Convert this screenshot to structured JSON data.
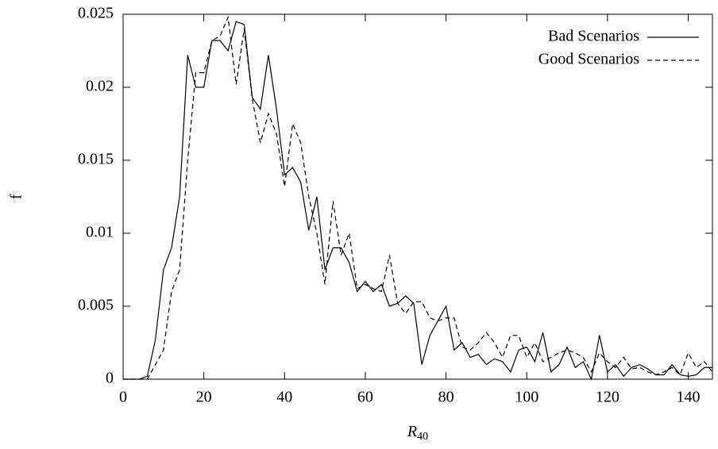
{
  "chart_data": {
    "type": "line",
    "y_label": "f",
    "x_label": "R",
    "x_label_sub": "40",
    "x": [
      0,
      2,
      4,
      6,
      8,
      10,
      12,
      14,
      16,
      18,
      20,
      22,
      24,
      26,
      28,
      30,
      32,
      34,
      36,
      38,
      40,
      42,
      44,
      46,
      48,
      50,
      52,
      54,
      56,
      58,
      60,
      62,
      64,
      66,
      68,
      70,
      72,
      74,
      76,
      78,
      80,
      82,
      84,
      86,
      88,
      90,
      92,
      94,
      96,
      98,
      100,
      102,
      104,
      106,
      108,
      110,
      112,
      114,
      116,
      118,
      120,
      122,
      124,
      126,
      128,
      130,
      132,
      134,
      136,
      138,
      140,
      142,
      144,
      146
    ],
    "series": [
      {
        "name": "Bad Scenarios",
        "color": "#000000",
        "dash": "none",
        "values": [
          0,
          0,
          0,
          0.0002,
          0.0027,
          0.0075,
          0.009,
          0.0125,
          0.0222,
          0.02,
          0.02,
          0.0232,
          0.0232,
          0.0225,
          0.0245,
          0.0243,
          0.0193,
          0.0185,
          0.0222,
          0.0185,
          0.014,
          0.0145,
          0.0135,
          0.0102,
          0.0125,
          0.0075,
          0.009,
          0.009,
          0.008,
          0.006,
          0.0067,
          0.006,
          0.0065,
          0.005,
          0.0052,
          0.0057,
          0.0052,
          0.001,
          0.003,
          0.004,
          0.005,
          0.002,
          0.0025,
          0.0015,
          0.0017,
          0.001,
          0.0014,
          0.0012,
          0.0005,
          0.002,
          0.0022,
          0.0012,
          0.0032,
          0.0005,
          0.001,
          0.0022,
          0.0008,
          0.0012,
          0,
          0.003,
          0.0005,
          0.001,
          0.0002,
          0.0008,
          0.001,
          0.0007,
          0.0003,
          0.0003,
          0.001,
          0.0003,
          0.0002,
          0.0003,
          0.0008,
          0.0008
        ]
      },
      {
        "name": "Good Scenarios",
        "color": "#000000",
        "dash": "6 4",
        "values": [
          0,
          0,
          0,
          0,
          0.001,
          0.002,
          0.006,
          0.0075,
          0.015,
          0.021,
          0.021,
          0.0232,
          0.0235,
          0.0248,
          0.0202,
          0.024,
          0.0192,
          0.0162,
          0.0182,
          0.0168,
          0.0132,
          0.0175,
          0.0162,
          0.0125,
          0.01,
          0.0065,
          0.0122,
          0.0085,
          0.01,
          0.0062,
          0.0065,
          0.0062,
          0.006,
          0.0085,
          0.0052,
          0.0045,
          0.0053,
          0.0053,
          0.0042,
          0.004,
          0.0042,
          0.0042,
          0.0022,
          0.002,
          0.0025,
          0.0032,
          0.0025,
          0.0015,
          0.003,
          0.003,
          0.0015,
          0.0025,
          0.0012,
          0.0015,
          0.0018,
          0.002,
          0.0018,
          0.0015,
          0.0005,
          0.0018,
          0.0012,
          0.0008,
          0.0015,
          0.0007,
          0.0008,
          0.0005,
          0.0003,
          0.0005,
          0.0008,
          0.0003,
          0.0018,
          0.0008,
          0.0012,
          0.0005
        ]
      }
    ],
    "xlim": [
      0,
      146
    ],
    "ylim": [
      0,
      0.025
    ],
    "xticks": [
      0,
      20,
      40,
      60,
      80,
      100,
      120,
      140
    ],
    "yticks": [
      0,
      0.005,
      0.01,
      0.015,
      0.02,
      0.025
    ],
    "legend": "top-right"
  }
}
